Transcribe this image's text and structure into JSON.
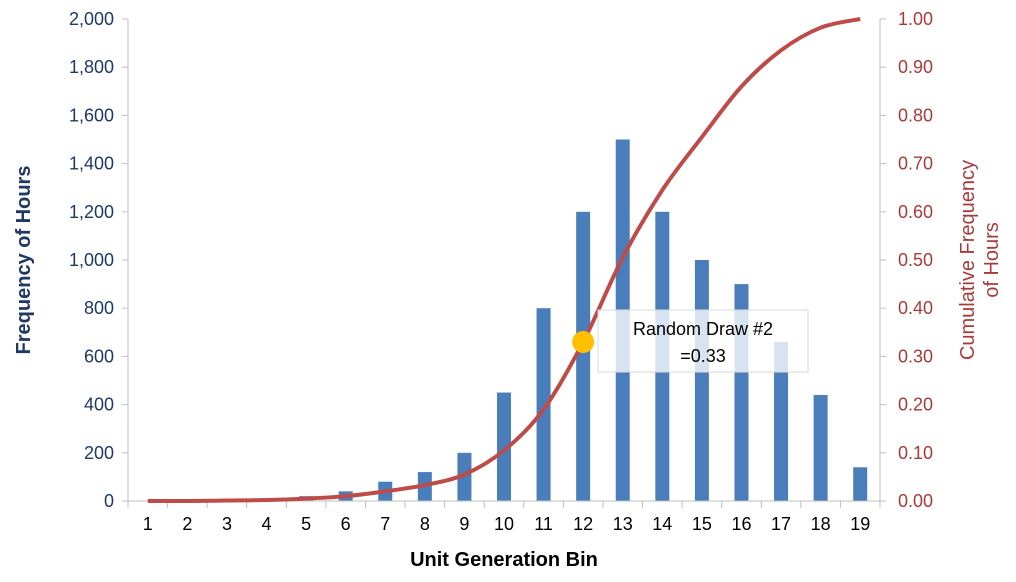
{
  "chart_data": {
    "type": "bar",
    "categories": [
      "1",
      "2",
      "3",
      "4",
      "5",
      "6",
      "7",
      "8",
      "9",
      "10",
      "11",
      "12",
      "13",
      "14",
      "15",
      "16",
      "17",
      "18",
      "19"
    ],
    "xlabel": "Unit Generation Bin",
    "series": [
      {
        "axis": "left",
        "type": "bar",
        "values": [
          0,
          0,
          0,
          5,
          20,
          40,
          80,
          120,
          200,
          450,
          800,
          1200,
          1500,
          1200,
          1000,
          900,
          660,
          440,
          140
        ]
      },
      {
        "axis": "right",
        "type": "line",
        "values": [
          0.0,
          0.0,
          0.001,
          0.002,
          0.005,
          0.01,
          0.02,
          0.033,
          0.055,
          0.105,
          0.19,
          0.33,
          0.505,
          0.645,
          0.755,
          0.86,
          0.935,
          0.982,
          1.0
        ]
      }
    ],
    "y_left": {
      "label": "Frequency of Hours",
      "ylim": [
        0,
        2000
      ],
      "ticks": [
        "0",
        "200",
        "400",
        "600",
        "800",
        "1,000",
        "1,200",
        "1,400",
        "1,600",
        "1,800",
        "2,000"
      ]
    },
    "y_right": {
      "label_lines": [
        "Cumulative Frequency",
        "of Hours"
      ],
      "ylim": [
        0,
        1
      ],
      "ticks": [
        "0.00",
        "0.10",
        "0.20",
        "0.30",
        "0.40",
        "0.50",
        "0.60",
        "0.70",
        "0.80",
        "0.90",
        "1.00"
      ]
    },
    "annotation": {
      "lines": [
        "Random Draw #2",
        "=0.33"
      ],
      "point_x_category": "12",
      "point_value": 0.33
    },
    "grid": false,
    "colors": {
      "bar": "#4a7ebb",
      "line": "#be4b48",
      "marker": "#ffc000",
      "left_axis_text": "#1f3864",
      "right_axis_text": "#a93a3a",
      "axis_line": "#bfbfbf"
    }
  }
}
